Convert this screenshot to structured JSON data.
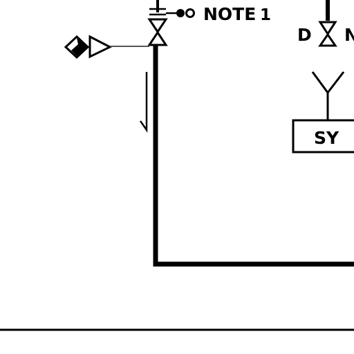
{
  "diagram": {
    "note_label": "NOTE",
    "note_number": "1",
    "valve_tag_left": "D",
    "valve_tag_right": "N",
    "box_label": "SY",
    "line_color": "#000000",
    "thin_line_color": "#444444",
    "background": "#ffffff"
  }
}
